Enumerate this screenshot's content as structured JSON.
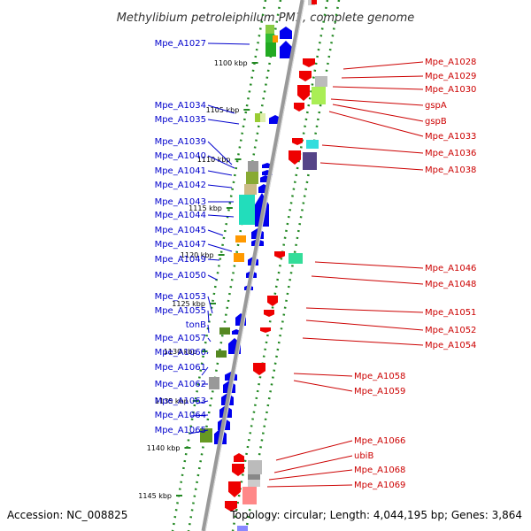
{
  "title": "Methylibium petroleiphilum PM1, complete genome",
  "footer": {
    "accession": "Accession: NC_008825",
    "topology": "Topology: circular; Length: 4,044,195 bp; Genes: 3,864"
  },
  "colors": {
    "backbone": "#999999",
    "forward_gene": "#0000ee",
    "reverse_gene": "#ee0000",
    "left_label": "#0000cc",
    "right_label": "#cc0000",
    "tick_dots": "#228822"
  },
  "ticks": [
    "1100 kbp",
    "1105 kbp",
    "1110 kbp",
    "1115 kbp",
    "1120 kbp",
    "1125 kbp",
    "1130 kbp",
    "1135 kbp",
    "1140 kbp",
    "1145 kbp"
  ],
  "left_labels": [
    "Mpe_A1027",
    "Mpe_A1034",
    "Mpe_A1035",
    "Mpe_A1039",
    "Mpe_A1040",
    "Mpe_A1041",
    "Mpe_A1042",
    "Mpe_A1043",
    "Mpe_A1044",
    "Mpe_A1045",
    "Mpe_A1047",
    "Mpe_A1049",
    "Mpe_A1050",
    "Mpe_A1053",
    "Mpe_A1055",
    "tonB",
    "Mpe_A1057",
    "Mpe_A1060",
    "Mpe_A1061",
    "Mpe_A1062",
    "Mpe_A1063",
    "Mpe_A1064",
    "Mpe_A1065"
  ],
  "right_labels": [
    "Mpe_A1028",
    "Mpe_A1029",
    "Mpe_A1030",
    "gspA",
    "gspB",
    "Mpe_A1033",
    "Mpe_A1036",
    "Mpe_A1038",
    "Mpe_A1046",
    "Mpe_A1048",
    "Mpe_A1051",
    "Mpe_A1052",
    "Mpe_A1054",
    "Mpe_A1058",
    "Mpe_A1059",
    "Mpe_A1066",
    "ubiB",
    "Mpe_A1068",
    "Mpe_A1069"
  ]
}
